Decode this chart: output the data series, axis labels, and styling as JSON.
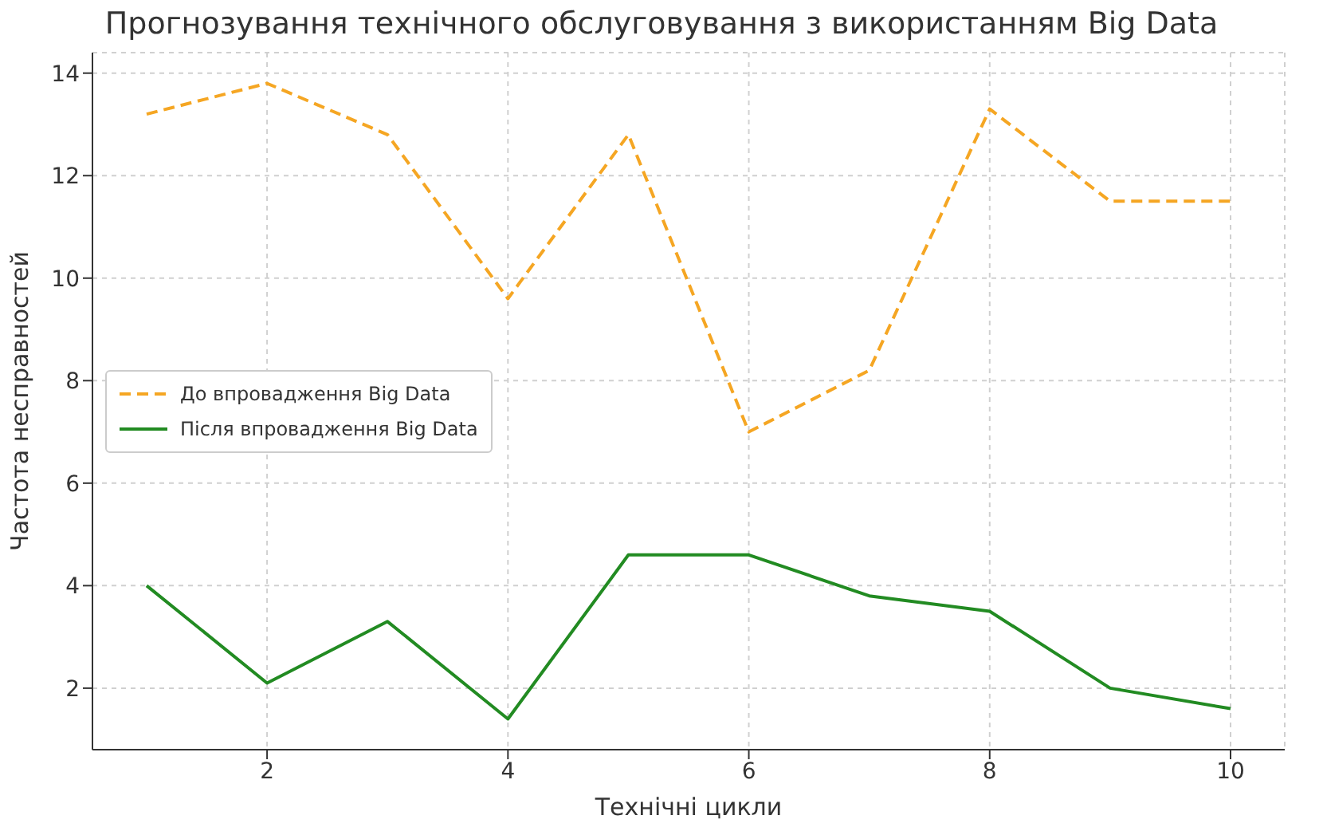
{
  "chart_data": {
    "type": "line",
    "title": "Прогнозування технічного обслуговування з використанням Big Data",
    "xlabel": "Технічні цикли",
    "ylabel": "Частота несправностей",
    "x": [
      1,
      2,
      3,
      4,
      5,
      6,
      7,
      8,
      9,
      10
    ],
    "series": [
      {
        "name": "До впровадження Big Data",
        "color": "#f5a623",
        "line_style": "dashed",
        "values": [
          13.2,
          13.8,
          12.8,
          9.6,
          12.8,
          7.0,
          8.2,
          13.3,
          11.5,
          11.5
        ]
      },
      {
        "name": "Після впровадження Big Data",
        "color": "#228b22",
        "line_style": "solid",
        "values": [
          4.0,
          2.1,
          3.3,
          1.4,
          4.6,
          4.6,
          3.8,
          3.5,
          2.0,
          1.6
        ]
      }
    ],
    "xlim": [
      0.55,
      10.45
    ],
    "xticks": [
      2,
      4,
      6,
      8,
      10
    ],
    "ylim": [
      0.8,
      14.4
    ],
    "yticks": [
      2,
      4,
      6,
      8,
      10,
      12,
      14
    ],
    "grid": true,
    "legend": "left",
    "marker": "none"
  }
}
